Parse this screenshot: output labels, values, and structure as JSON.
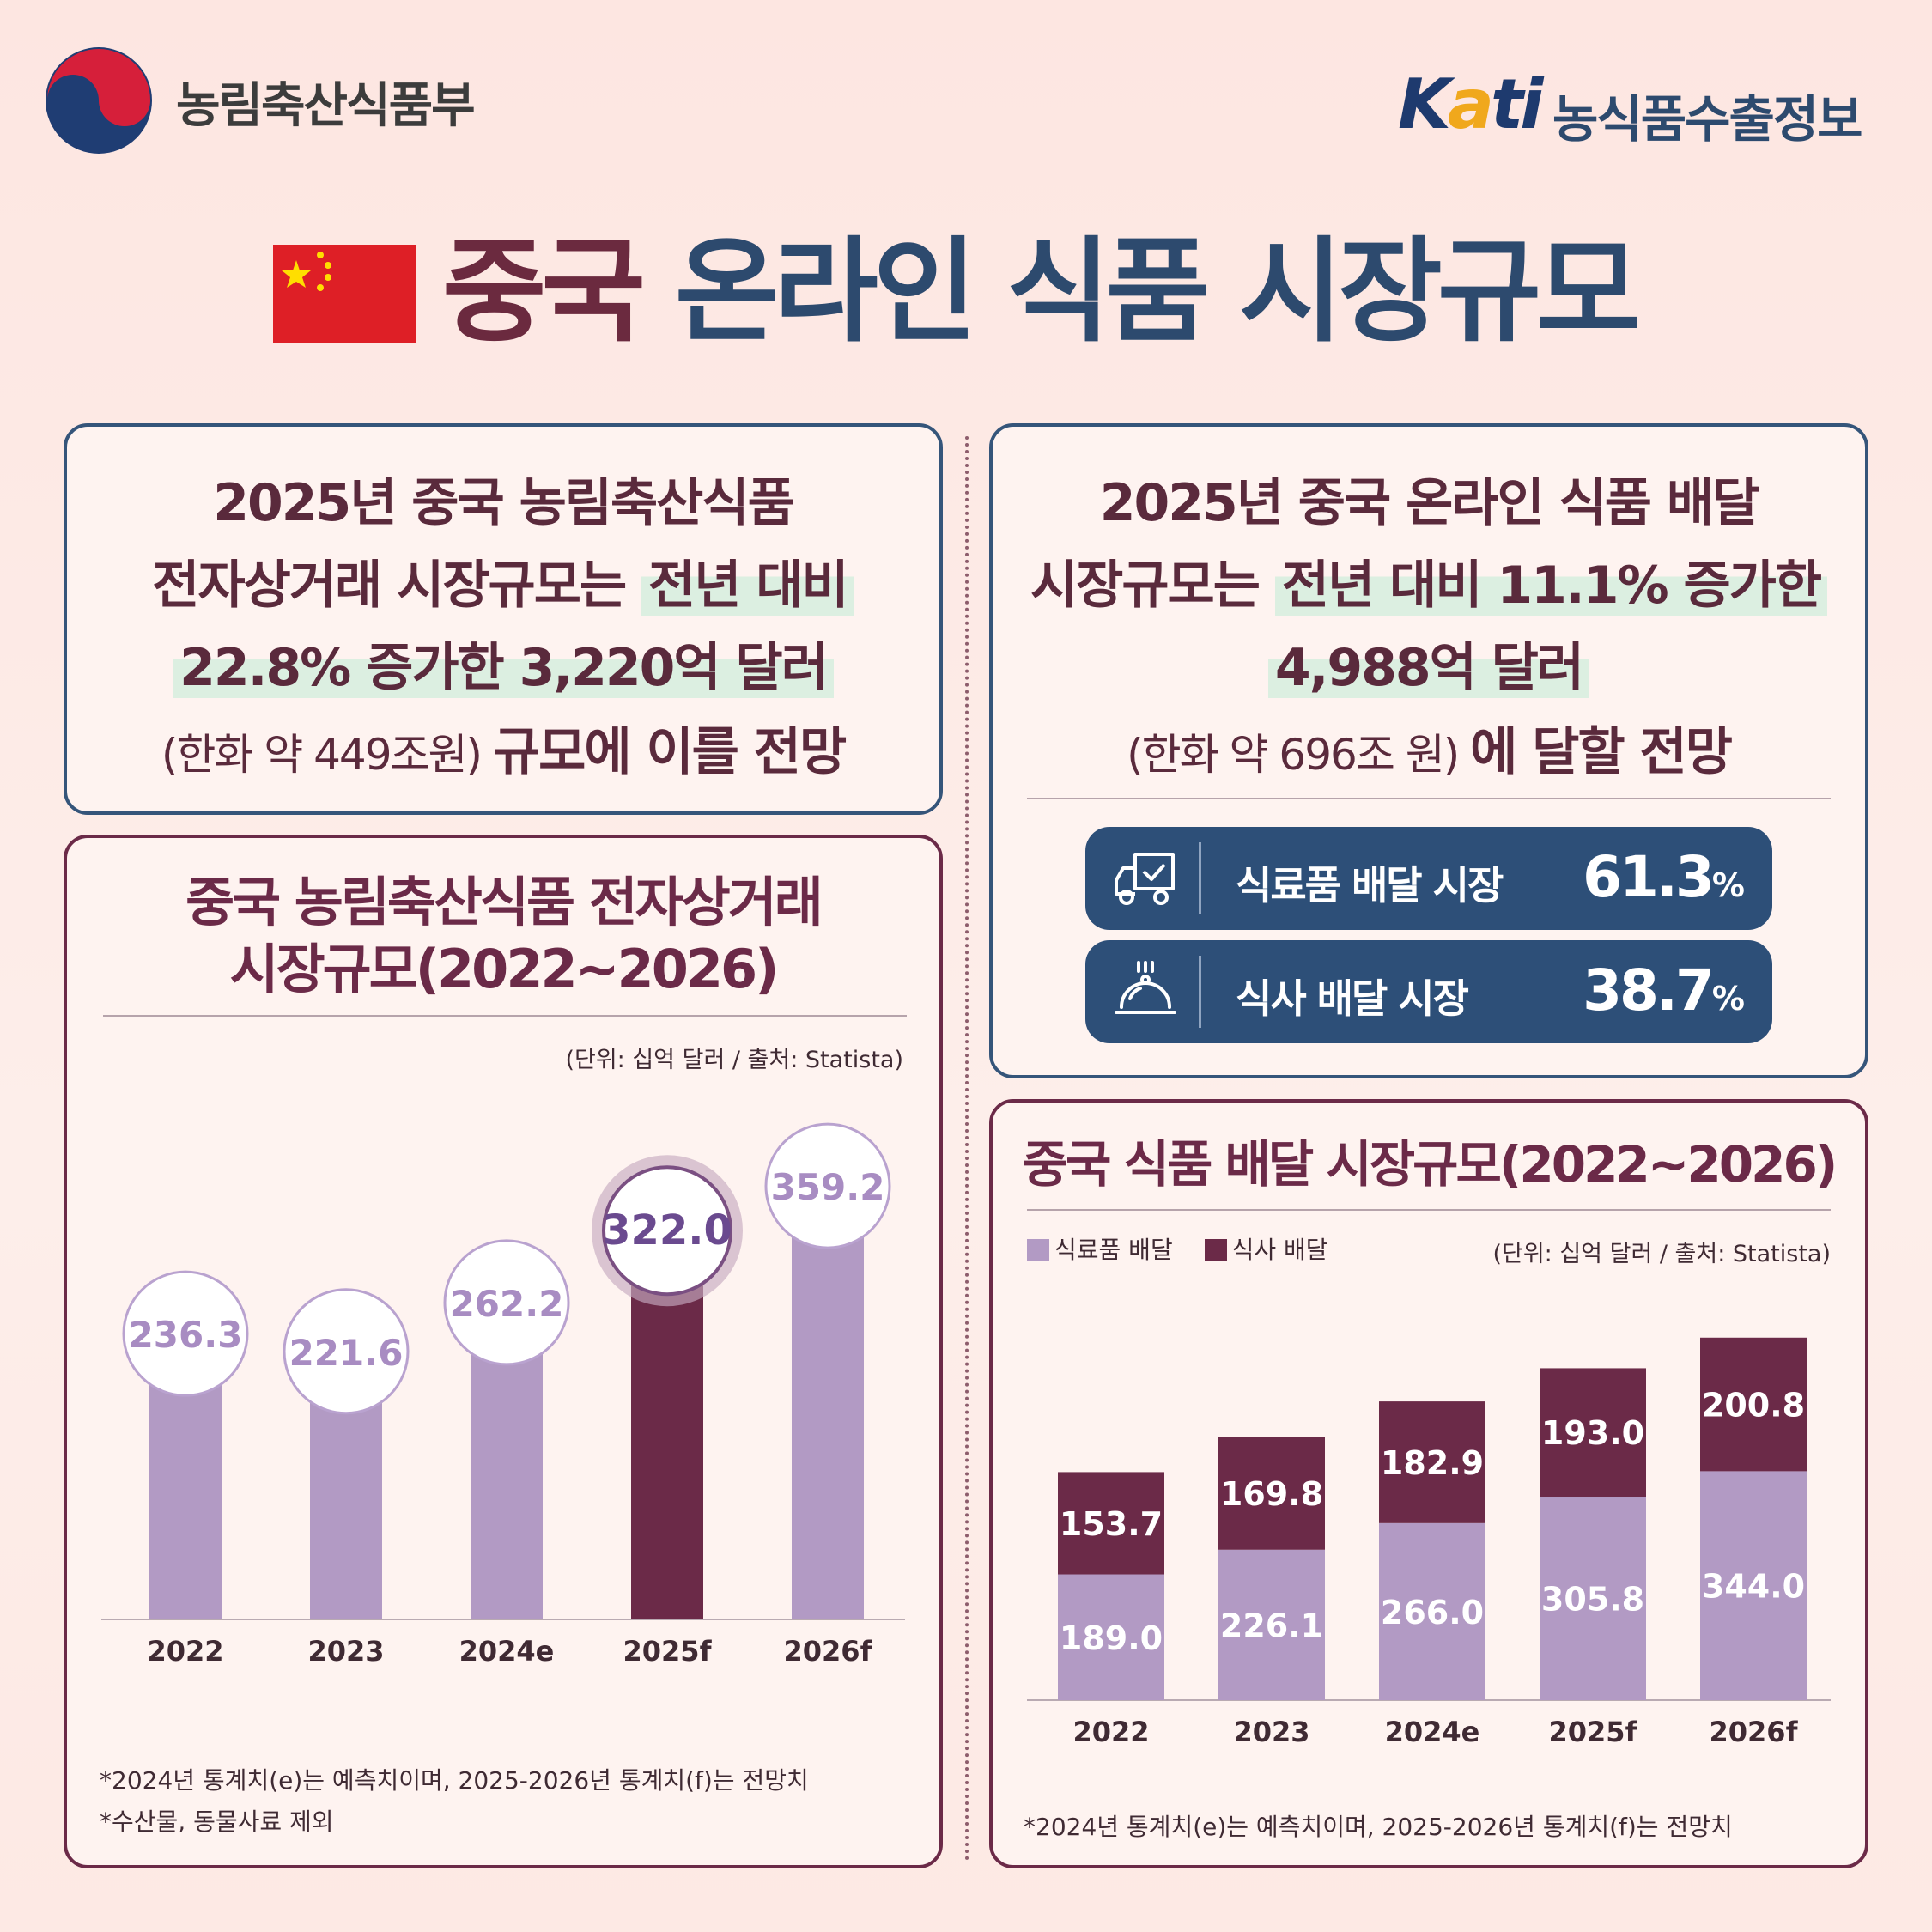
{
  "header": {
    "ministry": "농림축산식품부",
    "kati_logo": "Kati",
    "kati_text": "농식품수출정보"
  },
  "title": {
    "part1": "중국",
    "part2": "온라인 식품 시장규모"
  },
  "colors": {
    "plum": "#6b2a48",
    "lavender": "#b29ac4",
    "navy": "#2d4f78"
  },
  "left_summary": {
    "line1": "2025년 중국 농림축산식품",
    "line2a": "전자상거래 시장규모는 ",
    "line2b": "전년 대비",
    "line3": "22.8% 증가한 3,220억 달러",
    "line4a": "(한화 약 449조원) ",
    "line4b": "규모에 이를 전망"
  },
  "right_summary": {
    "line1": "2025년 중국 온라인 식품 배달",
    "line2a": "시장규모는 ",
    "line2b": "전년 대비 11.1% 증가한",
    "line3": "4,988억 달러",
    "line4a": "(한화 약 696조 원) ",
    "line4b": "에 달할 전망"
  },
  "delivery_shares": [
    {
      "label": "식료품 배달 시장",
      "value": "61.3",
      "unit": "%",
      "icon": "truck-check-icon"
    },
    {
      "label": "식사 배달 시장",
      "value": "38.7",
      "unit": "%",
      "icon": "cloche-icon"
    }
  ],
  "left_chart": {
    "title_line1": "중국 농림축산식품 전자상거래",
    "title_line2": "시장규모(2022~2026)",
    "unit": "(단위: 십억 달러 / 출처: Statista)",
    "notes": [
      "*2024년 통계치(e)는 예측치이며, 2025-2026년 통계치(f)는 전망치",
      "*수산물, 동물사료 제외"
    ]
  },
  "right_chart": {
    "title": "중국 식품 배달 시장규모(2022~2026)",
    "unit": "(단위: 십억 달러 / 출처: Statista)",
    "notes": [
      "*2024년 통계치(e)는 예측치이며, 2025-2026년 통계치(f)는 전망치"
    ]
  },
  "chart_data": [
    {
      "type": "bar",
      "title": "중국 농림축산식품 전자상거래 시장규모(2022~2026)",
      "categories": [
        "2022",
        "2023",
        "2024e",
        "2025f",
        "2026f"
      ],
      "values": [
        236.3,
        221.6,
        262.2,
        322.0,
        359.2
      ],
      "labels": [
        "236.3",
        "221.6",
        "262.2",
        "322.0",
        "359.2"
      ],
      "highlight_index": 3,
      "ylabel": "십억 달러",
      "ylim": [
        0,
        400
      ]
    },
    {
      "type": "bar",
      "stacked": true,
      "title": "중국 식품 배달 시장규모(2022~2026)",
      "categories": [
        "2022",
        "2023",
        "2024e",
        "2025f",
        "2026f"
      ],
      "series": [
        {
          "name": "식료품 배달",
          "values": [
            189.0,
            226.1,
            266.0,
            305.8,
            344.0
          ],
          "labels": [
            "189.0",
            "226.1",
            "266.0",
            "305.8",
            "344.0"
          ]
        },
        {
          "name": "식사 배달",
          "values": [
            153.7,
            169.8,
            182.9,
            193.0,
            200.8
          ],
          "labels": [
            "153.7",
            "169.8",
            "182.9",
            "193.0",
            "200.8"
          ]
        }
      ],
      "legend_position": "top-left",
      "ylabel": "십억 달러",
      "ylim": [
        0,
        600
      ]
    }
  ]
}
